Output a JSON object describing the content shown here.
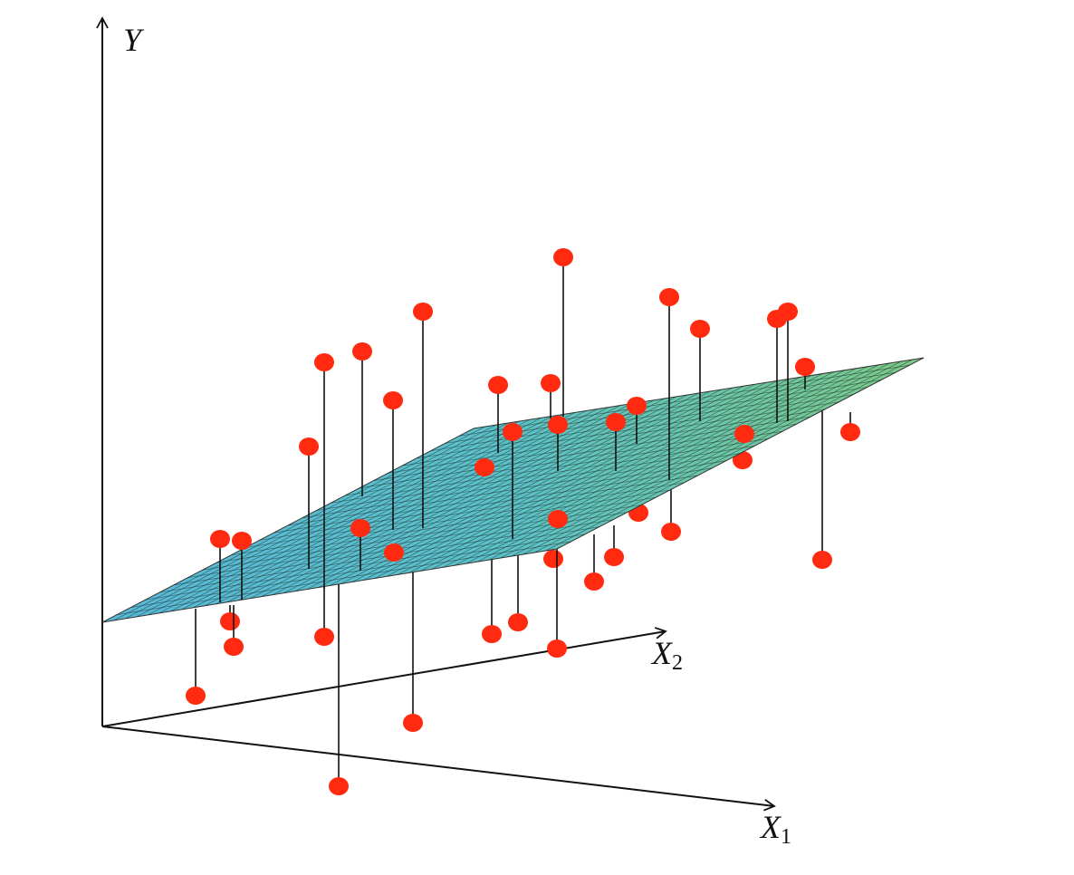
{
  "axes": {
    "y": {
      "label": "Y"
    },
    "x2": {
      "label": "X",
      "subscript": "2"
    },
    "x1": {
      "label": "X",
      "subscript": "1"
    }
  }
}
